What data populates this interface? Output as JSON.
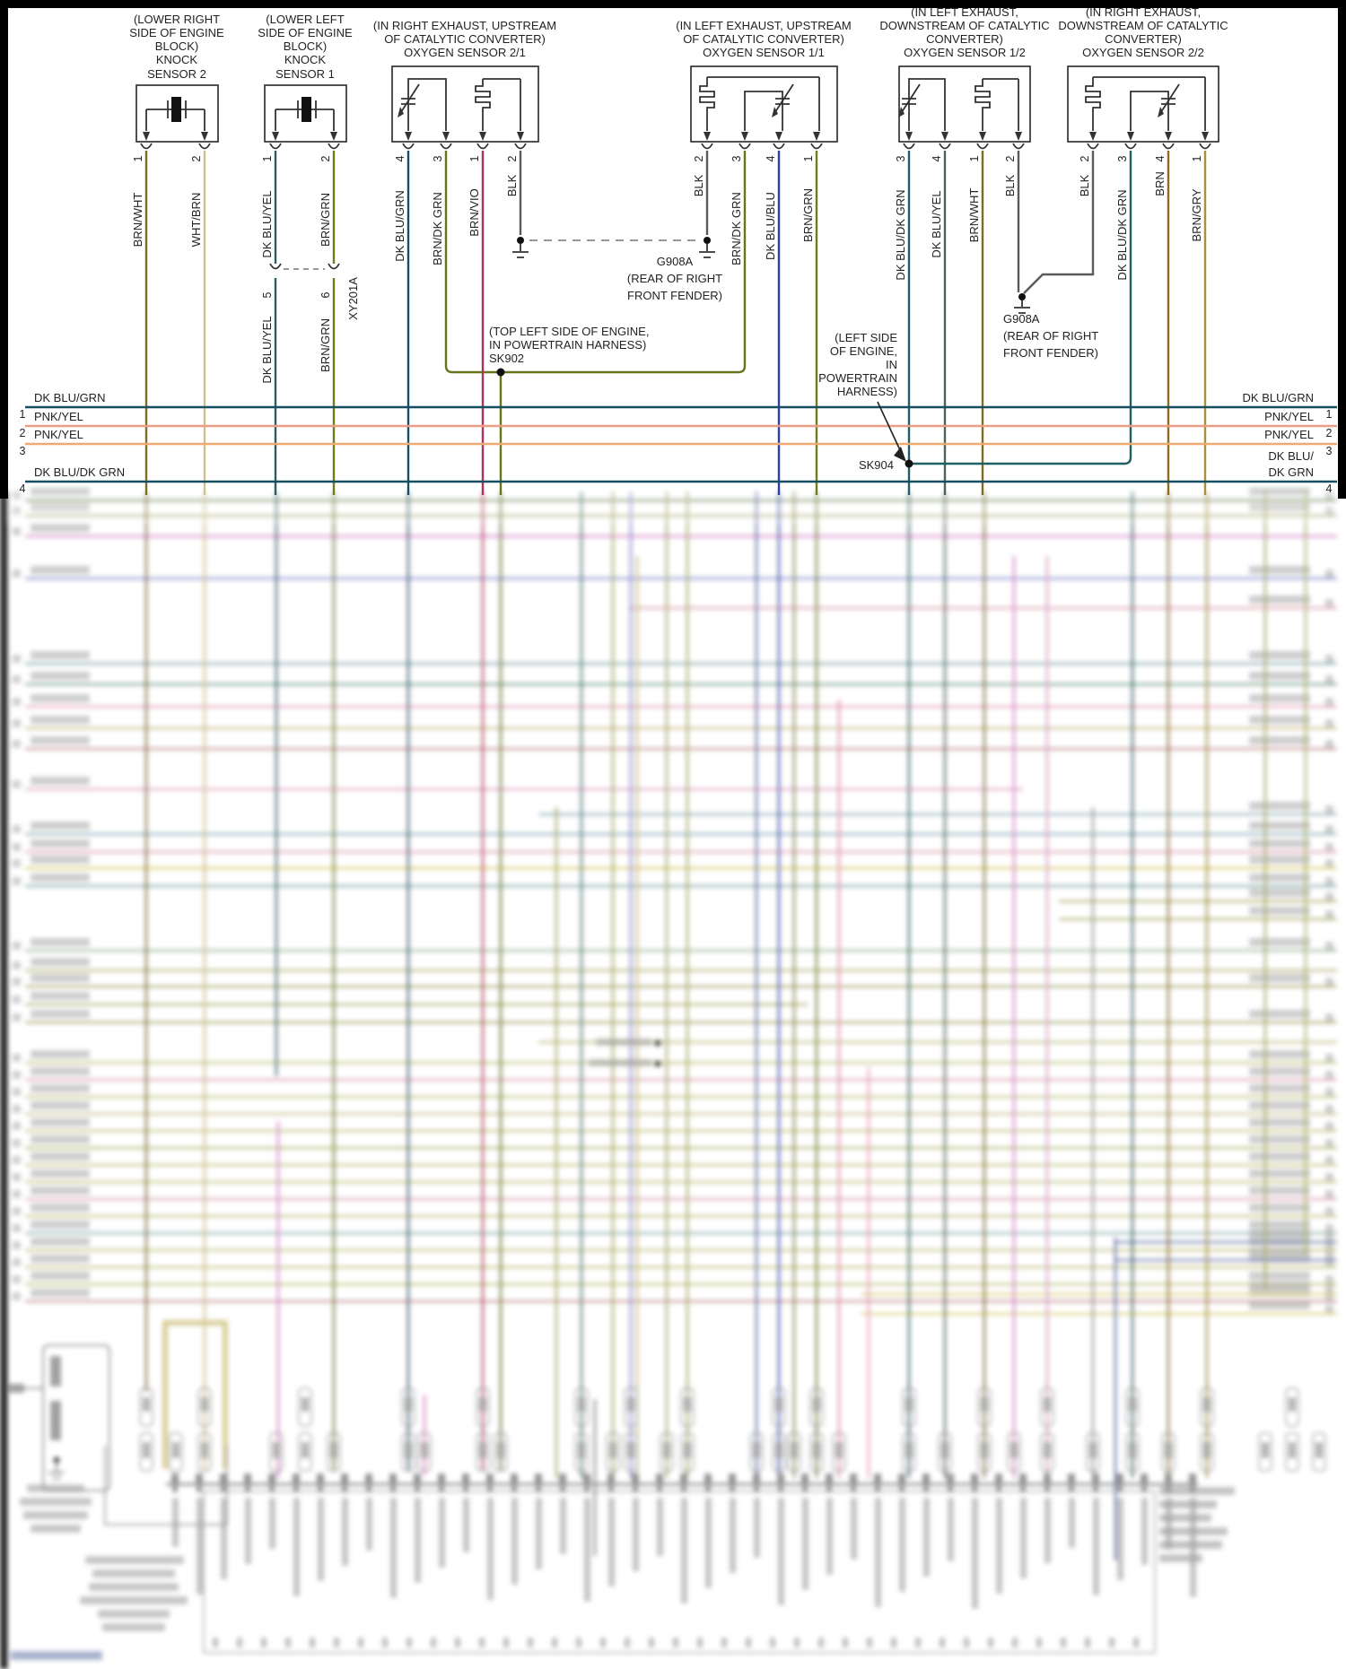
{
  "diagram_type": "automotive wiring diagram",
  "sensors": [
    {
      "id": "knock-sensor-2",
      "title": [
        "(LOWER RIGHT",
        "SIDE OF ENGINE",
        "BLOCK)",
        "KNOCK",
        "SENSOR 2"
      ],
      "pins": [
        {
          "n": "1",
          "wire": "BRN/WHT"
        },
        {
          "n": "2",
          "wire": "WHT/BRN"
        }
      ]
    },
    {
      "id": "knock-sensor-1",
      "title": [
        "(LOWER LEFT",
        "SIDE OF ENGINE",
        "BLOCK)",
        "KNOCK",
        "SENSOR 1"
      ],
      "pins": [
        {
          "n": "1",
          "wire": "DK BLU/YEL"
        },
        {
          "n": "2",
          "wire": "BRN/GRN"
        }
      ]
    },
    {
      "id": "oxygen-sensor-2-1",
      "title": [
        "(IN RIGHT EXHAUST, UPSTREAM",
        "OF CATALYTIC CONVERTER)",
        "OXYGEN SENSOR 2/1"
      ],
      "pins": [
        {
          "n": "4",
          "wire": "DK BLU/GRN"
        },
        {
          "n": "3",
          "wire": "BRN/DK GRN"
        },
        {
          "n": "1",
          "wire": "BRN/VIO"
        },
        {
          "n": "2",
          "wire": "BLK"
        }
      ]
    },
    {
      "id": "oxygen-sensor-1-1",
      "title": [
        "(IN LEFT EXHAUST, UPSTREAM",
        "OF CATALYTIC CONVERTER)",
        "OXYGEN SENSOR 1/1"
      ],
      "pins": [
        {
          "n": "2",
          "wire": "BLK"
        },
        {
          "n": "3",
          "wire": "BRN/DK GRN"
        },
        {
          "n": "4",
          "wire": "DK BLU/BLU"
        },
        {
          "n": "1",
          "wire": "BRN/GRN"
        }
      ]
    },
    {
      "id": "oxygen-sensor-1-2",
      "title": [
        "(IN LEFT EXHAUST,",
        "DOWNSTREAM OF CATALYTIC",
        "CONVERTER)",
        "OXYGEN SENSOR 1/2"
      ],
      "pins": [
        {
          "n": "3",
          "wire": "DK BLU/DK GRN"
        },
        {
          "n": "4",
          "wire": "DK BLU/YEL"
        },
        {
          "n": "1",
          "wire": "BRN/WHT"
        },
        {
          "n": "2",
          "wire": "BLK"
        }
      ]
    },
    {
      "id": "oxygen-sensor-2-2",
      "title": [
        "(IN RIGHT EXHAUST,",
        "DOWNSTREAM OF CATALYTIC",
        "CONVERTER)",
        "OXYGEN SENSOR 2/2"
      ],
      "pins": [
        {
          "n": "2",
          "wire": "BLK"
        },
        {
          "n": "3",
          "wire": "DK BLU/DK GRN"
        },
        {
          "n": "4",
          "wire": "BRN"
        },
        {
          "n": "1",
          "wire": "BRN/GRY"
        }
      ]
    }
  ],
  "inline_connector": {
    "label": "XY201A",
    "pins": [
      {
        "n": "5",
        "wire": "DK BLU/YEL"
      },
      {
        "n": "6",
        "wire": "BRN/GRN"
      }
    ]
  },
  "grounds": [
    {
      "label": "G908A",
      "location": [
        "(REAR OF RIGHT",
        "FRONT FENDER)"
      ]
    },
    {
      "label": "G908A",
      "location": [
        "(REAR OF RIGHT",
        "FRONT FENDER)"
      ]
    }
  ],
  "splices": [
    {
      "label": "SK902",
      "location": [
        "(TOP LEFT SIDE OF ENGINE,",
        "IN POWERTRAIN HARNESS)"
      ]
    },
    {
      "label": "SK904",
      "location": [
        "(LEFT SIDE",
        "OF ENGINE,",
        "IN",
        "POWERTRAIN",
        "HARNESS)"
      ]
    }
  ],
  "bus_wires": [
    {
      "n": "1",
      "left": "DK BLU/GRN",
      "right": [
        "DK BLU/GRN"
      ]
    },
    {
      "n": "2",
      "left": "PNK/YEL",
      "right": [
        "PNK/YEL"
      ]
    },
    {
      "n": "3",
      "left": "PNK/YEL",
      "right": [
        "PNK/YEL"
      ]
    },
    {
      "n": "4",
      "left": "DK BLU/DK GRN",
      "right": [
        "DK BLU/",
        "DK GRN"
      ]
    }
  ],
  "wire_colors": {
    "BLK": "#5a5a5a",
    "BRN/WHT": "#7d6c26",
    "WHT/BRN": "#cfc08d",
    "DK BLU/YEL": "#2b5c66",
    "BRN/GRN": "#6f7d1f",
    "DK BLU/GRN": "#174f62",
    "BRN/DK GRN": "#67761d",
    "BRN/VIO": "#b2315c",
    "DK BLU/BLU": "#2b3faa",
    "DK BLU/DK GRN": "#1d5f63",
    "BRN": "#8c6d1c",
    "BRN/GRY": "#a98f3e",
    "PNK/YEL": "#eb9d85"
  },
  "note": "lower portion of the original screenshot is out-of-focus / blurred"
}
